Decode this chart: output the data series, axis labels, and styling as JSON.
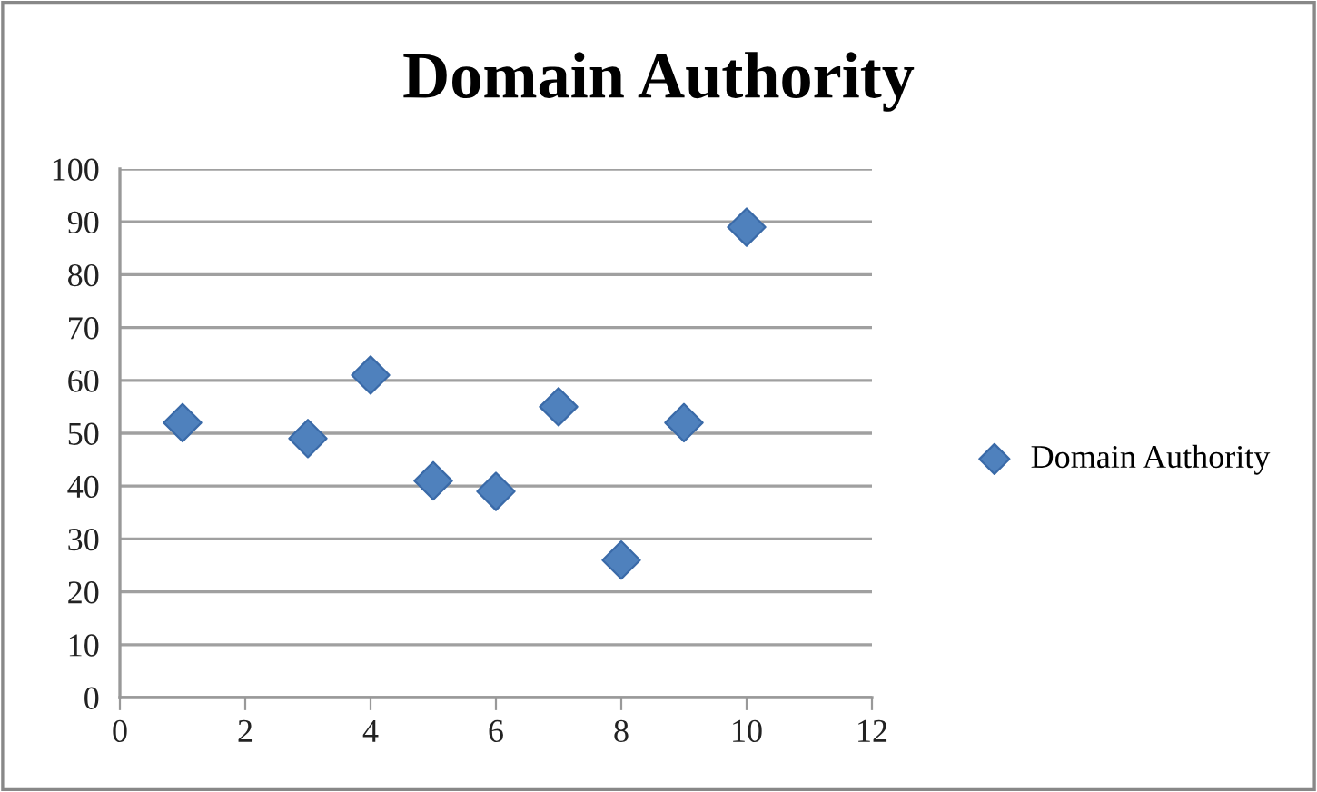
{
  "chart_data": {
    "type": "scatter",
    "title": "Domain Authority",
    "x": [
      1,
      3,
      4,
      5,
      6,
      7,
      8,
      9,
      10
    ],
    "series": [
      {
        "name": "Domain Authority",
        "color": "#4f81bd",
        "values": [
          52,
          49,
          61,
          41,
          39,
          55,
          26,
          52,
          89
        ]
      }
    ],
    "xlim": [
      0,
      12
    ],
    "xticks": [
      0,
      2,
      4,
      6,
      8,
      10,
      12
    ],
    "ylim": [
      0,
      100
    ],
    "yticks": [
      0,
      10,
      20,
      30,
      40,
      50,
      60,
      70,
      80,
      90,
      100
    ],
    "grid": "y",
    "legend": "right",
    "marker": "diamond"
  }
}
